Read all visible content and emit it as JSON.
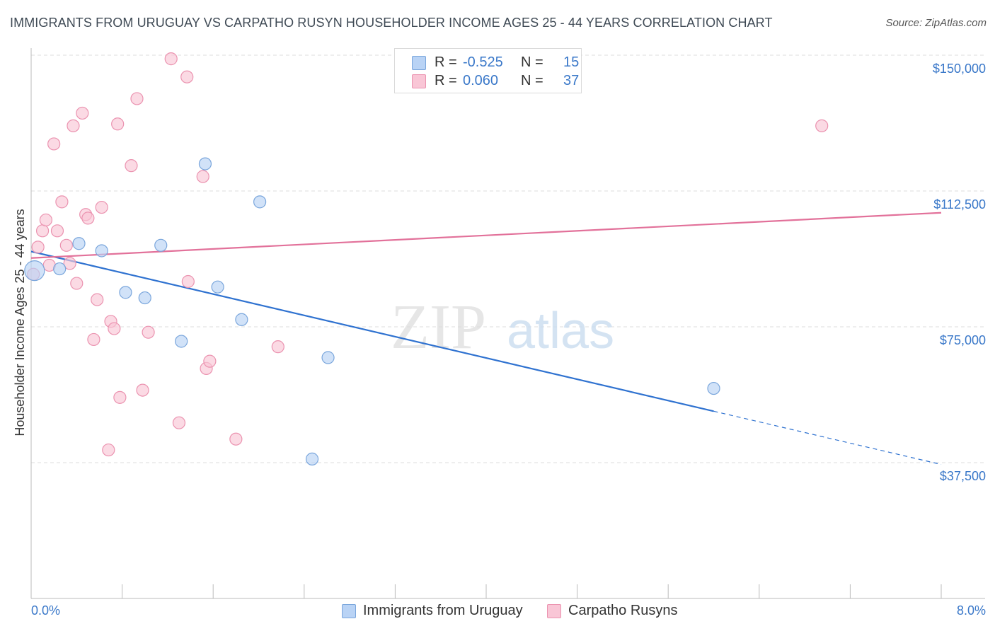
{
  "title": "IMMIGRANTS FROM URUGUAY VS CARPATHO RUSYN HOUSEHOLDER INCOME AGES 25 - 44 YEARS CORRELATION CHART",
  "source": "Source: ZipAtlas.com",
  "watermark": {
    "zip": "ZIP",
    "atlas": "atlas"
  },
  "legend": {
    "r_label": "R =",
    "n_label": "N =",
    "uruguay": {
      "r": "-0.525",
      "n": "15"
    },
    "rusyn": {
      "r": "0.060",
      "n": "37"
    }
  },
  "bottom_legend": {
    "uruguay": "Immigrants from Uruguay",
    "rusyn": "Carpatho Rusyns"
  },
  "colors": {
    "uruguay_fill": "#b9d3f5",
    "uruguay_stroke": "#7aa6dc",
    "uruguay_line": "#2f72d0",
    "rusyn_fill": "#f9c6d6",
    "rusyn_stroke": "#eb93b0",
    "rusyn_line": "#e2719a",
    "axis_text": "#3a78c9",
    "grid": "#dedede"
  },
  "chart_data": {
    "type": "scatter",
    "title": "IMMIGRANTS FROM URUGUAY VS CARPATHO RUSYN HOUSEHOLDER INCOME AGES 25 - 44 YEARS CORRELATION CHART",
    "xlabel": "",
    "ylabel": "Householder Income Ages 25 - 44 years",
    "xlim": [
      0,
      8
    ],
    "ylim": [
      0,
      155000
    ],
    "x_tick_labels": {
      "left": "0.0%",
      "right": "8.0%"
    },
    "y_ticks": [
      {
        "value": 37500,
        "label": "$37,500"
      },
      {
        "value": 75000,
        "label": "$75,000"
      },
      {
        "value": 112500,
        "label": "$112,500"
      },
      {
        "value": 150000,
        "label": "$150,000"
      }
    ],
    "series": [
      {
        "name": "Immigrants from Uruguay",
        "key": "uruguay",
        "points": [
          {
            "x": 0.03,
            "y": 90500,
            "big": true
          },
          {
            "x": 0.25,
            "y": 91000
          },
          {
            "x": 0.42,
            "y": 98000
          },
          {
            "x": 0.62,
            "y": 96000
          },
          {
            "x": 0.83,
            "y": 84500
          },
          {
            "x": 1.0,
            "y": 83000
          },
          {
            "x": 1.14,
            "y": 97500
          },
          {
            "x": 1.32,
            "y": 71000
          },
          {
            "x": 1.53,
            "y": 120000
          },
          {
            "x": 1.64,
            "y": 86000
          },
          {
            "x": 1.85,
            "y": 77000
          },
          {
            "x": 2.01,
            "y": 109500
          },
          {
            "x": 2.47,
            "y": 38500
          },
          {
            "x": 2.61,
            "y": 66500
          },
          {
            "x": 6.0,
            "y": 58000
          }
        ],
        "trend": {
          "x0": 0.0,
          "y0": 95800,
          "x1": 6.0,
          "y1": 51700,
          "dash_to_x": 8.0,
          "dash_to_y": 37000
        }
      },
      {
        "name": "Carpatho Rusyns",
        "key": "rusyn",
        "points": [
          {
            "x": 0.02,
            "y": 89500
          },
          {
            "x": 0.06,
            "y": 97000
          },
          {
            "x": 0.1,
            "y": 101500
          },
          {
            "x": 0.13,
            "y": 104500
          },
          {
            "x": 0.16,
            "y": 92000
          },
          {
            "x": 0.2,
            "y": 125500
          },
          {
            "x": 0.23,
            "y": 101500
          },
          {
            "x": 0.27,
            "y": 109500
          },
          {
            "x": 0.31,
            "y": 97500
          },
          {
            "x": 0.34,
            "y": 92500
          },
          {
            "x": 0.37,
            "y": 130500
          },
          {
            "x": 0.4,
            "y": 87000
          },
          {
            "x": 0.45,
            "y": 134000
          },
          {
            "x": 0.48,
            "y": 106000
          },
          {
            "x": 0.5,
            "y": 105000
          },
          {
            "x": 0.55,
            "y": 71500
          },
          {
            "x": 0.58,
            "y": 82500
          },
          {
            "x": 0.62,
            "y": 108000
          },
          {
            "x": 0.68,
            "y": 41000
          },
          {
            "x": 0.7,
            "y": 76500
          },
          {
            "x": 0.73,
            "y": 74500
          },
          {
            "x": 0.76,
            "y": 131000
          },
          {
            "x": 0.78,
            "y": 55500
          },
          {
            "x": 0.88,
            "y": 119500
          },
          {
            "x": 0.93,
            "y": 138000
          },
          {
            "x": 0.98,
            "y": 57500
          },
          {
            "x": 1.03,
            "y": 73500
          },
          {
            "x": 1.23,
            "y": 149000
          },
          {
            "x": 1.3,
            "y": 48500
          },
          {
            "x": 1.37,
            "y": 144000
          },
          {
            "x": 1.38,
            "y": 87500
          },
          {
            "x": 1.51,
            "y": 116500
          },
          {
            "x": 1.54,
            "y": 63500
          },
          {
            "x": 1.57,
            "y": 65500
          },
          {
            "x": 1.8,
            "y": 44000
          },
          {
            "x": 2.17,
            "y": 69500
          },
          {
            "x": 6.95,
            "y": 130500
          }
        ],
        "trend": {
          "x0": 0.0,
          "y0": 94000,
          "x1": 8.0,
          "y1": 106500
        }
      }
    ]
  }
}
